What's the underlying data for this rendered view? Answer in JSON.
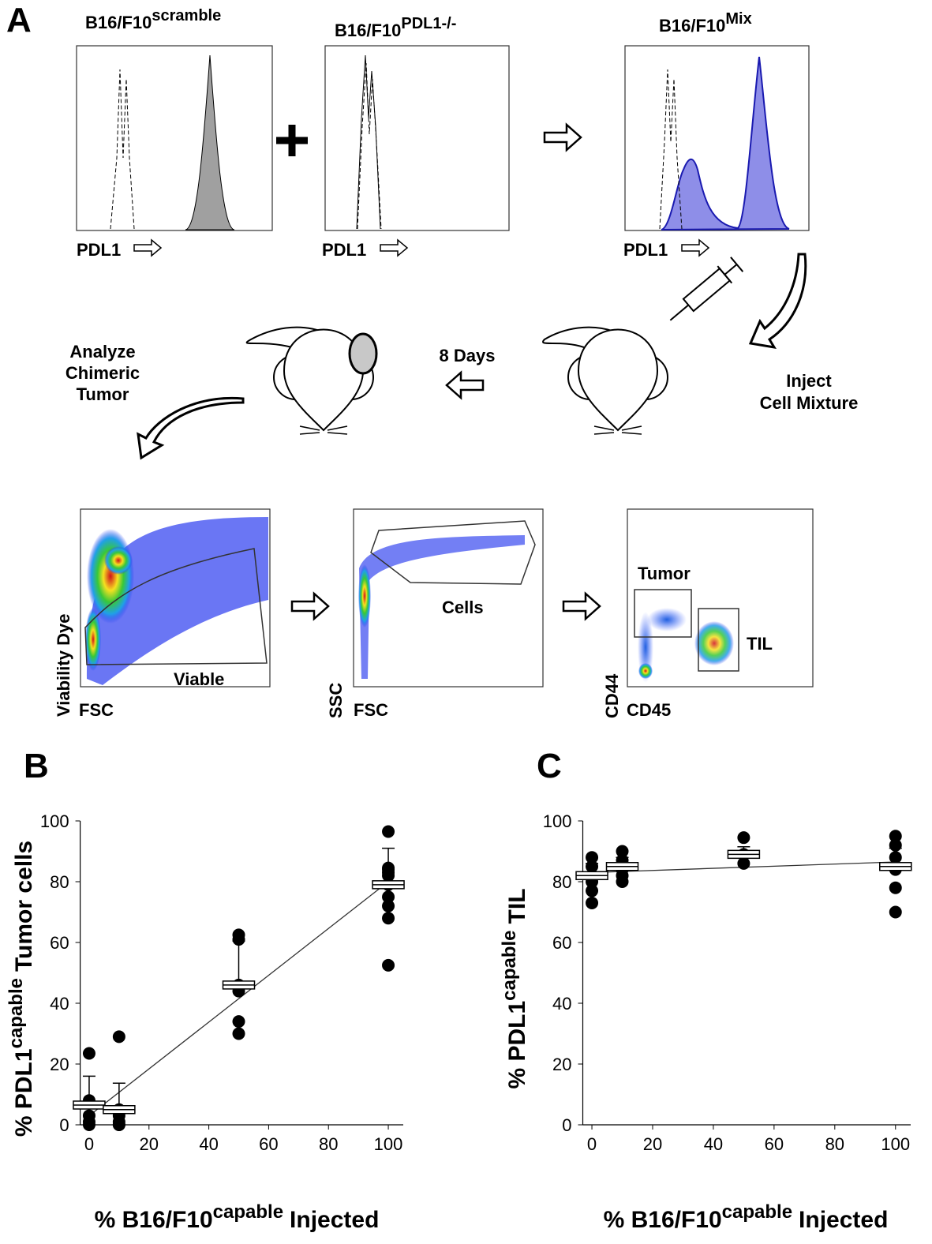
{
  "panel_a": {
    "label": "A",
    "histograms": [
      {
        "title": [
          "B16/F10",
          "scramble"
        ],
        "axis": "PDL1"
      },
      {
        "title": [
          "B16/F10",
          "PDL1-/-"
        ],
        "axis": "PDL1"
      },
      {
        "title": [
          "B16/F10",
          "Mix"
        ],
        "axis": "PDL1"
      }
    ],
    "steps": {
      "analyze": [
        "Analyze",
        "Chimeric",
        "Tumor"
      ],
      "days": "8 Days",
      "inject": [
        "Inject",
        "Cell Mixture"
      ]
    },
    "dot_plots": [
      {
        "y_axis": "Viability Dye",
        "x_axis": "FSC",
        "gates": [
          "Viable"
        ]
      },
      {
        "y_axis": "SSC",
        "x_axis": "FSC",
        "gates": [
          "Cells"
        ]
      },
      {
        "y_axis": "CD44",
        "x_axis": "CD45",
        "gates": [
          "Tumor",
          "TIL"
        ]
      }
    ]
  },
  "chart_data": [
    {
      "type": "scatter",
      "title": "B",
      "ylabel": [
        "% PDL1",
        "capable",
        "Tumor cells"
      ],
      "xlabel": [
        "% B16/F10",
        "capable",
        "Injected"
      ],
      "x": [
        0,
        0,
        0,
        0,
        0,
        10,
        10,
        10,
        10,
        10,
        10,
        50,
        50,
        50,
        50,
        50,
        50,
        100,
        100,
        100,
        100,
        100,
        100,
        100,
        100,
        100,
        100
      ],
      "values": [
        23.5,
        8,
        3,
        1,
        0,
        29,
        5,
        3,
        1,
        0,
        0,
        62.5,
        61,
        46,
        44,
        34,
        30,
        96.5,
        84.5,
        84,
        83,
        82,
        79,
        75,
        72,
        68,
        52.5
      ],
      "color": "#000000",
      "means": {
        "x": [
          0,
          10,
          50,
          100
        ],
        "values": [
          6.5,
          5,
          46,
          79
        ],
        "errors": [
          9.5,
          8.7,
          14.5,
          12
        ]
      },
      "fit": {
        "x": [
          0,
          100
        ],
        "values": [
          3,
          80
        ]
      },
      "xlim": [
        -3,
        105
      ],
      "ylim": [
        0,
        100
      ],
      "xticks": [
        0,
        20,
        40,
        60,
        80,
        100
      ],
      "yticks": [
        0,
        20,
        40,
        60,
        80,
        100
      ]
    },
    {
      "type": "scatter",
      "title": "C",
      "ylabel": [
        "% PDL1",
        "capable",
        "TIL"
      ],
      "xlabel": [
        "% B16/F10",
        "capable",
        "Injected"
      ],
      "x": [
        0,
        0,
        0,
        0,
        0,
        10,
        10,
        10,
        10,
        10,
        50,
        50,
        50,
        100,
        100,
        100,
        100,
        100,
        100
      ],
      "values": [
        88,
        85,
        80,
        77,
        73,
        90,
        87,
        84,
        82,
        80,
        94.5,
        89,
        86,
        95,
        92,
        88,
        84,
        78,
        70
      ],
      "color": "#000000",
      "means": {
        "x": [
          0,
          10,
          50,
          100
        ],
        "values": [
          82,
          85,
          89,
          85
        ],
        "errors": [
          4,
          3,
          2.5,
          6
        ]
      },
      "fit": {
        "x": [
          0,
          100
        ],
        "values": [
          83,
          86.5
        ]
      },
      "xlim": [
        -3,
        105
      ],
      "ylim": [
        0,
        100
      ],
      "xticks": [
        0,
        20,
        40,
        60,
        80,
        100
      ],
      "yticks": [
        0,
        20,
        40,
        60,
        80,
        100
      ]
    }
  ]
}
